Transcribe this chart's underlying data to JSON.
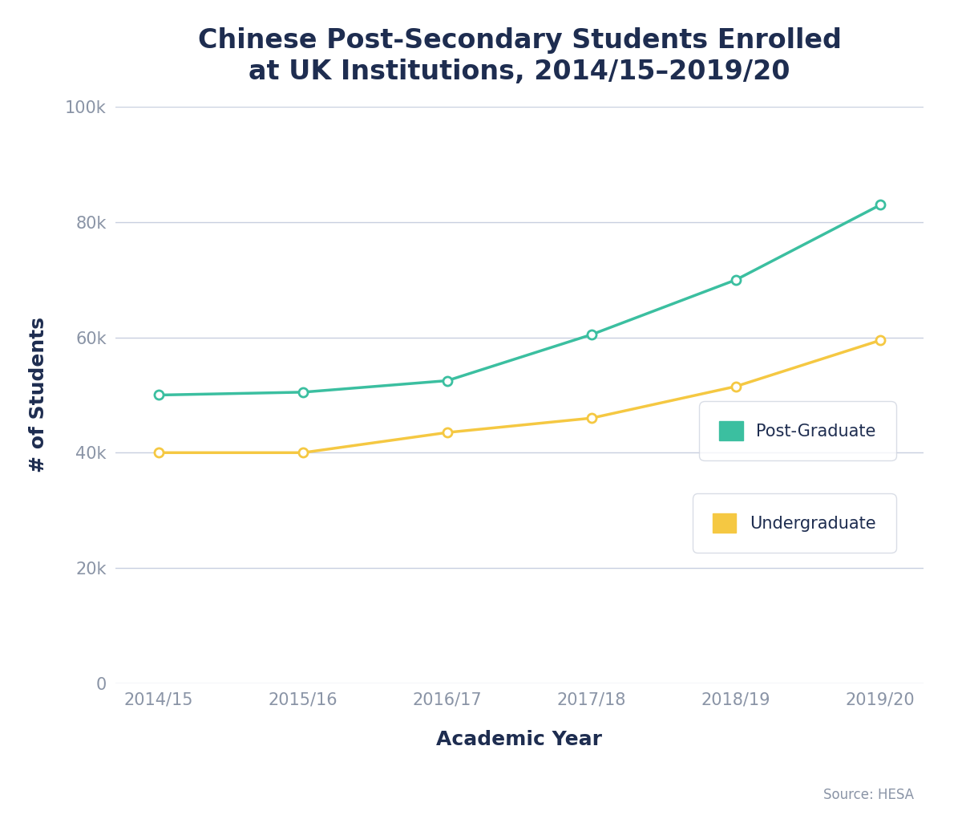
{
  "title": "Chinese Post-Secondary Students Enrolled\nat UK Institutions, 2014/15–2019/20",
  "xlabel": "Academic Year",
  "ylabel": "# of Students",
  "source": "Source: HESA",
  "categories": [
    "2014/15",
    "2015/16",
    "2016/17",
    "2017/18",
    "2018/19",
    "2019/20"
  ],
  "postgrad": [
    50000,
    50500,
    52500,
    60500,
    70000,
    83000
  ],
  "undergrad": [
    40000,
    40000,
    43500,
    46000,
    51500,
    59500
  ],
  "postgrad_color": "#3bbfa0",
  "undergrad_color": "#f5c842",
  "background_color": "#ffffff",
  "title_color": "#1e2d50",
  "tick_color": "#8a94a6",
  "grid_color": "#c8cfe0",
  "ylim": [
    0,
    100000
  ],
  "yticks": [
    0,
    20000,
    40000,
    60000,
    80000,
    100000
  ],
  "ytick_labels": [
    "0",
    "20k",
    "40k",
    "60k",
    "80k",
    "100k"
  ],
  "legend_postgrad": "Post-Graduate",
  "legend_undergrad": "Undergraduate",
  "line_width": 2.5,
  "marker_size": 8,
  "title_fontsize": 24,
  "axis_label_fontsize": 18,
  "tick_fontsize": 15,
  "legend_fontsize": 15,
  "source_fontsize": 12
}
